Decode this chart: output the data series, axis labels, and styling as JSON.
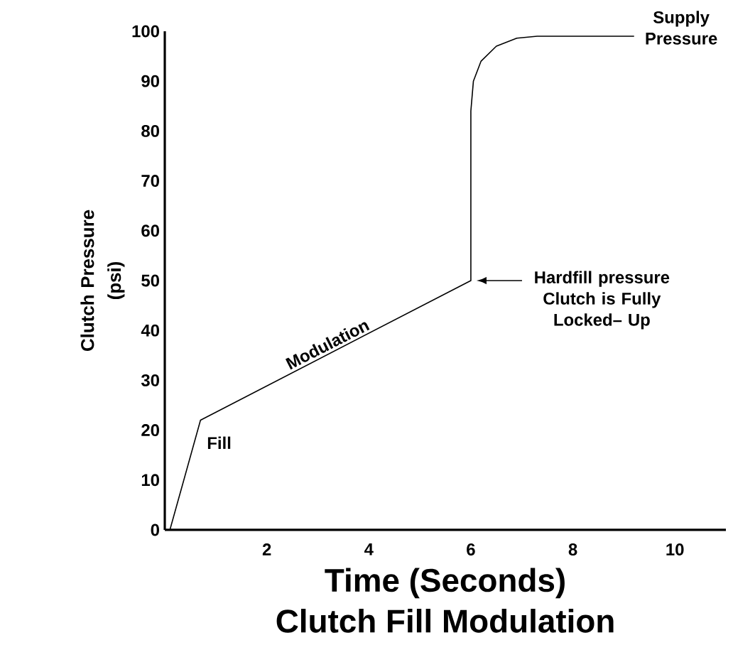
{
  "chart_data": {
    "type": "line",
    "title": "Clutch Fill Modulation",
    "xlabel": "Time (Seconds)",
    "ylabel": "Clutch Pressure (psi)",
    "x": [
      0.1,
      0.7,
      6,
      6,
      6.05,
      6.2,
      6.5,
      6.9,
      7.3,
      9.2
    ],
    "values": [
      0,
      22,
      50,
      84,
      90,
      94,
      97,
      98.6,
      99,
      99
    ],
    "color": "#000000",
    "marker": "none",
    "line_style": "solid",
    "grid": false,
    "xlim": [
      0,
      11
    ],
    "ylim": [
      0,
      100
    ],
    "xticks": [
      2,
      4,
      6,
      8,
      10
    ],
    "yticks": [
      0,
      10,
      20,
      30,
      40,
      50,
      60,
      70,
      80,
      90,
      100
    ],
    "annotations": [
      {
        "text": "Fill",
        "x": 0.7,
        "y": 22
      },
      {
        "text": "Modulation",
        "x": 3.3,
        "y": 35
      },
      "Hardfill pressure Clutch is Fully Locked– Up",
      {
        "text": "Supply Pressure",
        "x": 9.2,
        "y": 99
      }
    ]
  }
}
